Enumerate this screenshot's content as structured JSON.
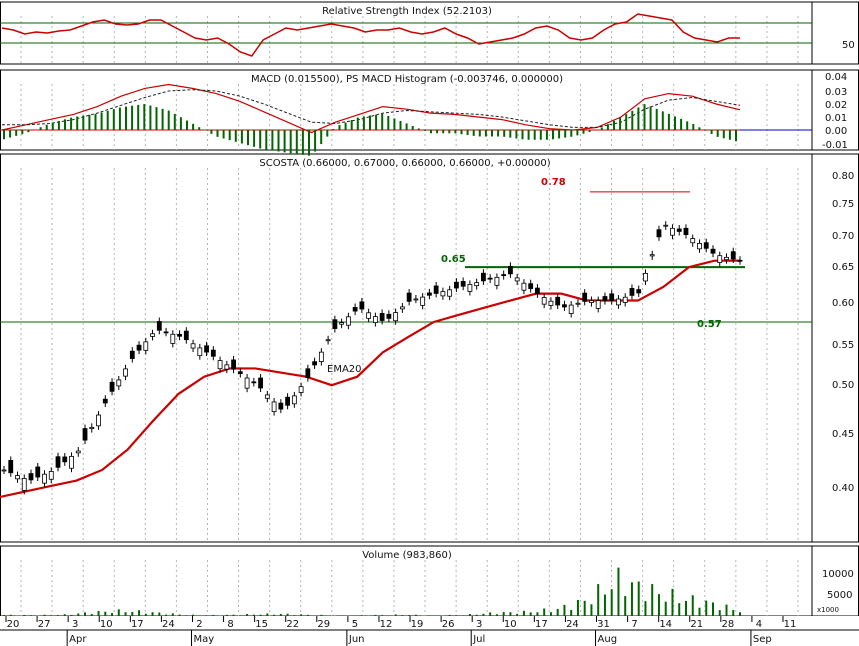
{
  "colors": {
    "background": "#ffffff",
    "grid": "#b4b4b4",
    "price_line": "#cc0000",
    "ema": "#cc0000",
    "macd_line": "#cc0000",
    "signal_line": "#222222",
    "histogram": "#006600",
    "volume": "#006600",
    "support": "#006600",
    "candle_up": "#ffffff",
    "candle_down": "#000000",
    "zero_line": "#0000cc",
    "fib_078": "#cc0000",
    "fib_065": "#006600",
    "fib_057": "#006600"
  },
  "panels": {
    "rsi": {
      "title": "Relative Strength Index (52.2103)",
      "ticks": [
        "50"
      ]
    },
    "macd": {
      "title": "MACD (0.015500), PS MACD Histogram (-0.003746, 0.000000)",
      "ticks": [
        "0.04",
        "0.03",
        "0.02",
        "0.01",
        "0.00",
        "-0.01"
      ]
    },
    "price": {
      "title": "SCOSTA (0.66000, 0.67000, 0.66000, 0.66000, +0.00000)",
      "ticks": [
        "0.80",
        "0.75",
        "0.70",
        "0.65",
        "0.60",
        "0.55",
        "0.50",
        "0.45",
        "0.40"
      ],
      "ema_label": "EMA20",
      "level_labels": [
        "0.78",
        "0.65",
        "0.57"
      ]
    },
    "volume": {
      "title": "Volume (983,860)",
      "ticks": [
        "10000",
        "5000"
      ],
      "unit": "x1000"
    }
  },
  "x_axis": {
    "day_ticks": [
      "20",
      "27",
      "3",
      "10",
      "17",
      "24",
      "2",
      "8",
      "15",
      "22",
      "29",
      "5",
      "12",
      "19",
      "26",
      "3",
      "10",
      "17",
      "24",
      "31",
      "7",
      "14",
      "21",
      "28",
      "4",
      "11"
    ],
    "months": [
      "Apr",
      "May",
      "Jun",
      "Jul",
      "Aug",
      "Sep"
    ]
  },
  "chart_data": [
    {
      "type": "line",
      "title": "Relative Strength Index (52.2103)",
      "series": [
        {
          "values": [
            62,
            60,
            56,
            58,
            57,
            59,
            60,
            64,
            68,
            70,
            66,
            65,
            66,
            70,
            70,
            64,
            58,
            52,
            50,
            52,
            46,
            38,
            34,
            50,
            56,
            62,
            60,
            62,
            64,
            66,
            64,
            62,
            58,
            60,
            60,
            62,
            58,
            56,
            58,
            62,
            56,
            52,
            46,
            48,
            50,
            52,
            56,
            62,
            64,
            60,
            52,
            50,
            52,
            60,
            66,
            68,
            76,
            74,
            72,
            70,
            58,
            52,
            50,
            48,
            52,
            52
          ]
        }
      ]
    },
    {
      "type": "line",
      "title": "MACD (0.015500), PS MACD Histogram (-0.003746, 0.000000)",
      "ylim": [
        -0.015,
        0.045
      ],
      "series": [
        {
          "values": [
            0.0,
            0.004,
            0.008,
            0.012,
            0.018,
            0.026,
            0.032,
            0.035,
            0.032,
            0.028,
            0.022,
            0.014,
            0.006,
            -0.002,
            0.006,
            0.012,
            0.018,
            0.016,
            0.013,
            0.012,
            0.01,
            0.008,
            0.004,
            0.001,
            0.0,
            0.002,
            0.01,
            0.024,
            0.028,
            0.026,
            0.02,
            0.0155
          ]
        },
        {
          "values": [
            0.004,
            0.004,
            0.005,
            0.008,
            0.013,
            0.019,
            0.025,
            0.03,
            0.031,
            0.03,
            0.026,
            0.02,
            0.013,
            0.006,
            0.005,
            0.008,
            0.013,
            0.015,
            0.014,
            0.013,
            0.012,
            0.01,
            0.007,
            0.004,
            0.002,
            0.002,
            0.006,
            0.016,
            0.023,
            0.025,
            0.022,
            0.019
          ]
        },
        {
          "values": [
            -0.003,
            -0.001,
            0.002,
            0.004,
            0.005,
            0.007,
            0.008,
            0.006,
            0.002,
            -0.002,
            -0.004,
            -0.006,
            -0.007,
            -0.008,
            0.001,
            0.004,
            0.005,
            0.002,
            -0.001,
            -0.001,
            -0.002,
            -0.002,
            -0.003,
            -0.003,
            -0.002,
            0.0,
            0.004,
            0.008,
            0.005,
            0.002,
            -0.002,
            -0.003746
          ]
        }
      ]
    },
    {
      "type": "line",
      "title": "SCOSTA (0.66000, 0.67000, 0.66000, 0.66000, +0.00000)",
      "ylim": [
        0.36,
        0.82
      ],
      "series": [
        {
          "name": "EMA20",
          "values": [
            0.375,
            0.38,
            0.385,
            0.39,
            0.4,
            0.42,
            0.45,
            0.48,
            0.5,
            0.51,
            0.51,
            0.505,
            0.5,
            0.49,
            0.5,
            0.53,
            0.55,
            0.57,
            0.58,
            0.59,
            0.6,
            0.61,
            0.61,
            0.6,
            0.6,
            0.6,
            0.62,
            0.65,
            0.66,
            0.66
          ]
        },
        {
          "name": "Close",
          "values": [
            0.4,
            0.39,
            0.4,
            0.42,
            0.47,
            0.52,
            0.56,
            0.55,
            0.53,
            0.51,
            0.49,
            0.46,
            0.5,
            0.56,
            0.59,
            0.57,
            0.6,
            0.61,
            0.62,
            0.63,
            0.64,
            0.61,
            0.59,
            0.6,
            0.6,
            0.61,
            0.72,
            0.7,
            0.67,
            0.66
          ]
        }
      ],
      "levels": [
        0.78,
        0.65,
        0.57
      ]
    },
    {
      "type": "bar",
      "title": "Volume (983,860)",
      "ylim": [
        0,
        14000
      ],
      "values": [
        400,
        300,
        500,
        1500,
        2000,
        1200,
        400,
        300,
        600,
        800,
        400,
        200,
        300,
        500,
        200,
        400,
        1200,
        1500,
        2500,
        6000,
        14000,
        10000,
        7000,
        5000,
        2000
      ]
    }
  ]
}
